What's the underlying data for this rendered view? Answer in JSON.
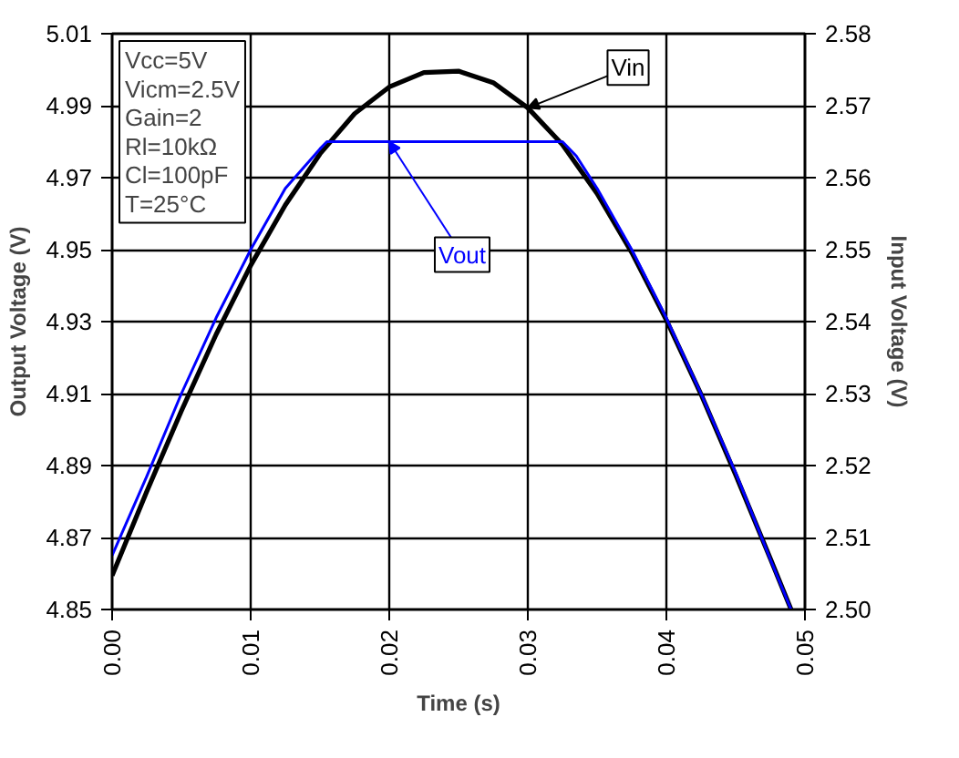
{
  "chart_data": {
    "type": "line",
    "xlabel": "Time (s)",
    "ylabel": "Output Voltage (V)",
    "y2label": "Input Voltage (V)",
    "xlim": [
      0,
      0.05
    ],
    "xticks": [
      {
        "value": 0,
        "label": "0.00"
      },
      0.01,
      0.02,
      0.03,
      0.04,
      0.05
    ],
    "ylim": [
      4.85,
      5.01
    ],
    "yticks": [
      4.85,
      4.87,
      4.89,
      4.91,
      4.93,
      4.95,
      4.97,
      4.99,
      5.01
    ],
    "y2lim": [
      2.5,
      2.58
    ],
    "y2ticks": [
      {
        "value": 2.5,
        "label": "2.50"
      },
      2.51,
      2.52,
      2.53,
      2.54,
      2.55,
      2.56,
      2.57,
      2.58
    ],
    "grid": true,
    "legend": false,
    "marker": "none",
    "line_style": "solid",
    "annotations": [
      "Vcc=5V",
      "Vicm=2.5V",
      "Gain=2",
      "Rl=10kΩ",
      "Cl=100pF",
      "T=25°C"
    ],
    "series": [
      {
        "name": "Vin",
        "color": "#000000",
        "axis": "y2",
        "x": [
          0,
          0.0025,
          0.005,
          0.0075,
          0.01,
          0.0125,
          0.015,
          0.0175,
          0.02,
          0.0225,
          0.025,
          0.0275,
          0.03,
          0.0325,
          0.035,
          0.0375,
          0.04,
          0.0425,
          0.045,
          0.0475,
          0.049
        ],
        "values": [
          2.5047,
          2.5164,
          2.5276,
          2.5382,
          2.5478,
          2.5562,
          2.5633,
          2.5689,
          2.5726,
          2.5746,
          2.5748,
          2.5732,
          2.5697,
          2.5646,
          2.5578,
          2.5496,
          2.5402,
          2.5299,
          2.5187,
          2.5071,
          2.5
        ]
      },
      {
        "name": "Vout",
        "color": "#0000ff",
        "x": [
          0,
          0.0025,
          0.005,
          0.0075,
          0.01,
          0.0125,
          0.015,
          0.0155,
          0.02,
          0.025,
          0.0325,
          0.0335,
          0.035,
          0.0375,
          0.04,
          0.0425,
          0.045,
          0.0475,
          0.049
        ],
        "values": [
          4.865,
          4.887,
          4.91,
          4.931,
          4.95,
          4.967,
          4.978,
          4.98,
          4.98,
          4.98,
          4.98,
          4.976,
          4.967,
          4.95,
          4.931,
          4.91,
          4.888,
          4.864,
          4.85
        ]
      }
    ]
  }
}
